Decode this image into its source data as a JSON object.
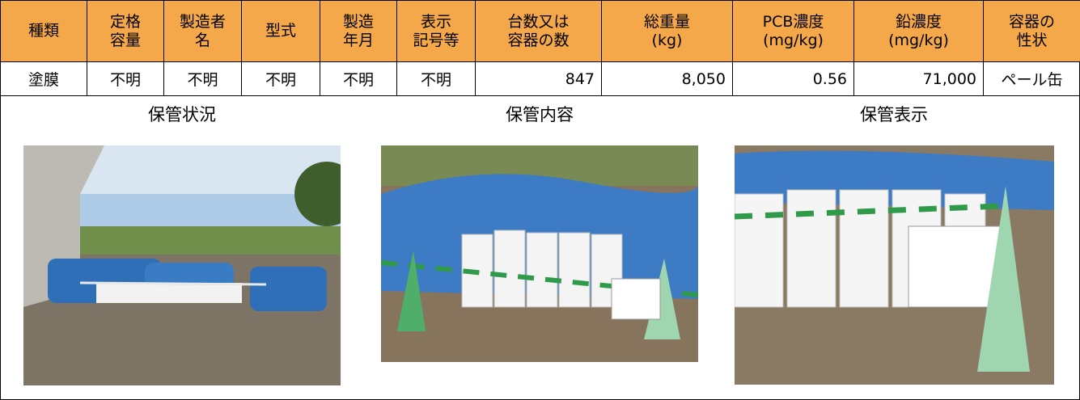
{
  "table": {
    "header": [
      [
        "種類"
      ],
      [
        "定格",
        "容量"
      ],
      [
        "製造者",
        "名"
      ],
      [
        "型式"
      ],
      [
        "製造",
        "年月"
      ],
      [
        "表示",
        "記号等"
      ],
      [
        "台数又は",
        "容器の数"
      ],
      [
        "総重量",
        "(kg)"
      ],
      [
        "PCB濃度",
        "(mg/kg)"
      ],
      [
        "鉛濃度",
        "(mg/kg)"
      ],
      [
        "容器の",
        "性状"
      ]
    ],
    "rows": [
      [
        "塗膜",
        "不明",
        "不明",
        "不明",
        "不明",
        "不明",
        "847",
        "8,050",
        "0.56",
        "71,000",
        "ペール缶"
      ]
    ]
  },
  "photos": [
    {
      "caption": "保管状況"
    },
    {
      "caption": "保管内容"
    },
    {
      "caption": "保管表示"
    }
  ]
}
